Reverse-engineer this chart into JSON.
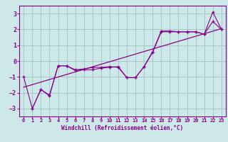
{
  "xlabel": "Windchill (Refroidissement éolien,°C)",
  "bg_color": "#cce8e8",
  "line_color": "#880088",
  "grid_color": "#99bbbb",
  "xlim": [
    -0.5,
    23.5
  ],
  "ylim": [
    -3.5,
    3.5
  ],
  "xticks": [
    0,
    1,
    2,
    3,
    4,
    5,
    6,
    7,
    8,
    9,
    10,
    11,
    12,
    13,
    14,
    15,
    16,
    17,
    18,
    19,
    20,
    21,
    22,
    23
  ],
  "yticks": [
    -3,
    -2,
    -1,
    0,
    1,
    2,
    3
  ],
  "series1_x": [
    0,
    1,
    2,
    3,
    4,
    5,
    6,
    7,
    8,
    9,
    10,
    11,
    12,
    13,
    14,
    15,
    16,
    17,
    18,
    19,
    20,
    21,
    22,
    23
  ],
  "series1_y": [
    -1.0,
    -3.0,
    -1.8,
    -2.2,
    -0.3,
    -0.3,
    -0.55,
    -0.5,
    -0.4,
    -0.4,
    -0.35,
    -0.4,
    -1.05,
    -1.05,
    -0.35,
    0.6,
    1.9,
    1.9,
    1.85,
    1.85,
    1.85,
    1.7,
    3.1,
    2.0
  ],
  "series2_x": [
    1,
    2,
    3,
    4,
    5,
    6,
    7,
    8,
    9,
    10,
    11,
    12,
    13,
    14,
    15,
    16,
    17,
    18,
    19,
    20,
    21,
    22,
    23
  ],
  "series2_y": [
    -3.0,
    -1.8,
    -2.15,
    -0.3,
    -0.3,
    -0.6,
    -0.55,
    -0.55,
    -0.45,
    -0.4,
    -0.35,
    -1.05,
    -1.05,
    -0.35,
    0.55,
    1.85,
    1.85,
    1.85,
    1.85,
    1.85,
    1.7,
    2.5,
    2.0
  ],
  "trend_x": [
    0,
    23
  ],
  "trend_y": [
    -1.65,
    2.05
  ],
  "tick_fontsize": 5,
  "xlabel_fontsize": 5.5
}
